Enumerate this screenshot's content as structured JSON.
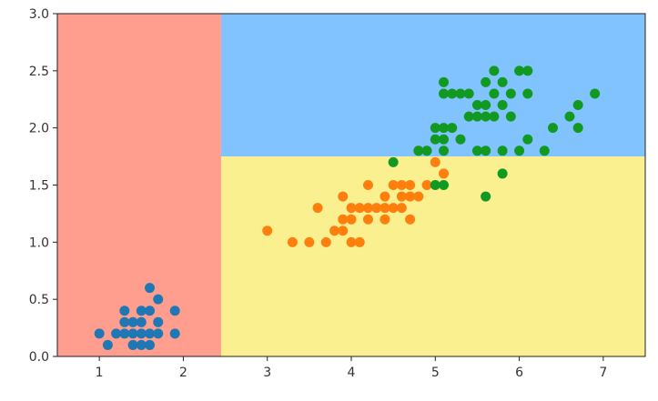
{
  "chart_data": {
    "type": "scatter",
    "title": "",
    "xlabel": "",
    "ylabel": "",
    "xlim": [
      0.5,
      7.5
    ],
    "ylim": [
      0.0,
      3.0
    ],
    "grid": false,
    "xticks": [
      1,
      2,
      3,
      4,
      5,
      6,
      7
    ],
    "yticks": [
      0.0,
      0.5,
      1.0,
      1.5,
      2.0,
      2.5,
      3.0
    ],
    "xtick_labels": [
      "1",
      "2",
      "3",
      "4",
      "5",
      "6",
      "7"
    ],
    "ytick_labels": [
      "0.0",
      "0.5",
      "1.0",
      "1.5",
      "2.0",
      "2.5",
      "3.0"
    ],
    "decision_regions": [
      {
        "x_range": [
          0.5,
          2.45
        ],
        "y_range": [
          0.0,
          3.0
        ],
        "color": "#ff9e8f"
      },
      {
        "x_range": [
          2.45,
          7.5
        ],
        "y_range": [
          1.75,
          3.0
        ],
        "color": "#80c3ff"
      },
      {
        "x_range": [
          2.45,
          7.5
        ],
        "y_range": [
          0.0,
          1.75
        ],
        "color": "#fbf08f"
      }
    ],
    "series": [
      {
        "color": "#1f77b4",
        "points": [
          [
            1.0,
            0.2
          ],
          [
            1.1,
            0.1
          ],
          [
            1.2,
            0.2
          ],
          [
            1.3,
            0.2
          ],
          [
            1.3,
            0.3
          ],
          [
            1.3,
            0.4
          ],
          [
            1.4,
            0.1
          ],
          [
            1.4,
            0.2
          ],
          [
            1.4,
            0.3
          ],
          [
            1.5,
            0.1
          ],
          [
            1.5,
            0.2
          ],
          [
            1.5,
            0.3
          ],
          [
            1.5,
            0.4
          ],
          [
            1.6,
            0.1
          ],
          [
            1.6,
            0.2
          ],
          [
            1.6,
            0.4
          ],
          [
            1.6,
            0.6
          ],
          [
            1.7,
            0.2
          ],
          [
            1.7,
            0.3
          ],
          [
            1.7,
            0.5
          ],
          [
            1.9,
            0.2
          ],
          [
            1.9,
            0.4
          ]
        ]
      },
      {
        "color": "#ff7f0e",
        "points": [
          [
            3.0,
            1.1
          ],
          [
            3.3,
            1.0
          ],
          [
            3.5,
            1.0
          ],
          [
            3.6,
            1.3
          ],
          [
            3.7,
            1.0
          ],
          [
            3.8,
            1.1
          ],
          [
            3.9,
            1.1
          ],
          [
            3.9,
            1.2
          ],
          [
            3.9,
            1.4
          ],
          [
            4.0,
            1.0
          ],
          [
            4.0,
            1.2
          ],
          [
            4.0,
            1.3
          ],
          [
            4.1,
            1.0
          ],
          [
            4.1,
            1.3
          ],
          [
            4.2,
            1.2
          ],
          [
            4.2,
            1.3
          ],
          [
            4.2,
            1.5
          ],
          [
            4.3,
            1.3
          ],
          [
            4.4,
            1.2
          ],
          [
            4.4,
            1.3
          ],
          [
            4.4,
            1.4
          ],
          [
            4.5,
            1.3
          ],
          [
            4.5,
            1.5
          ],
          [
            4.6,
            1.3
          ],
          [
            4.6,
            1.4
          ],
          [
            4.6,
            1.5
          ],
          [
            4.7,
            1.2
          ],
          [
            4.7,
            1.4
          ],
          [
            4.7,
            1.5
          ],
          [
            4.8,
            1.4
          ],
          [
            4.8,
            1.8
          ],
          [
            4.9,
            1.5
          ],
          [
            5.0,
            1.7
          ],
          [
            5.1,
            1.6
          ]
        ]
      },
      {
        "color": "#119922",
        "points": [
          [
            4.5,
            1.7
          ],
          [
            4.8,
            1.8
          ],
          [
            4.9,
            1.8
          ],
          [
            5.0,
            1.5
          ],
          [
            5.0,
            1.9
          ],
          [
            5.0,
            2.0
          ],
          [
            5.1,
            1.5
          ],
          [
            5.1,
            1.8
          ],
          [
            5.1,
            1.9
          ],
          [
            5.1,
            2.0
          ],
          [
            5.1,
            2.3
          ],
          [
            5.1,
            2.4
          ],
          [
            5.2,
            2.0
          ],
          [
            5.2,
            2.3
          ],
          [
            5.3,
            1.9
          ],
          [
            5.3,
            2.3
          ],
          [
            5.4,
            2.1
          ],
          [
            5.4,
            2.3
          ],
          [
            5.5,
            1.8
          ],
          [
            5.5,
            2.1
          ],
          [
            5.5,
            2.2
          ],
          [
            5.6,
            1.4
          ],
          [
            5.6,
            1.8
          ],
          [
            5.6,
            2.1
          ],
          [
            5.6,
            2.2
          ],
          [
            5.6,
            2.4
          ],
          [
            5.7,
            2.1
          ],
          [
            5.7,
            2.3
          ],
          [
            5.7,
            2.5
          ],
          [
            5.8,
            1.6
          ],
          [
            5.8,
            1.8
          ],
          [
            5.8,
            2.2
          ],
          [
            5.8,
            2.4
          ],
          [
            5.9,
            2.1
          ],
          [
            5.9,
            2.3
          ],
          [
            6.0,
            1.8
          ],
          [
            6.0,
            2.5
          ],
          [
            6.1,
            1.9
          ],
          [
            6.1,
            2.3
          ],
          [
            6.1,
            2.5
          ],
          [
            6.3,
            1.8
          ],
          [
            6.4,
            2.0
          ],
          [
            6.6,
            2.1
          ],
          [
            6.7,
            2.0
          ],
          [
            6.7,
            2.2
          ],
          [
            6.9,
            2.3
          ]
        ]
      }
    ]
  }
}
